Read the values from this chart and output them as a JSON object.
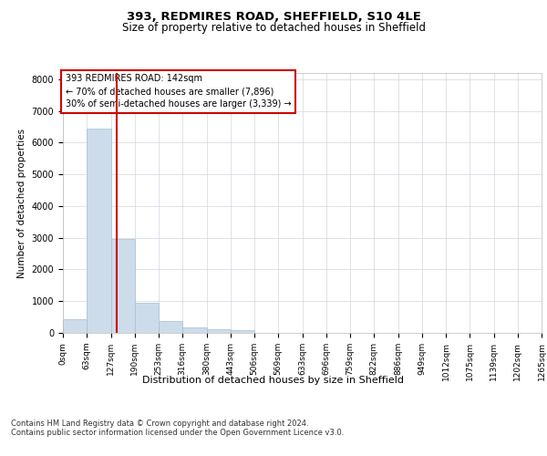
{
  "title_line1": "393, REDMIRES ROAD, SHEFFIELD, S10 4LE",
  "title_line2": "Size of property relative to detached houses in Sheffield",
  "xlabel": "Distribution of detached houses by size in Sheffield",
  "ylabel": "Number of detached properties",
  "footer_line1": "Contains HM Land Registry data © Crown copyright and database right 2024.",
  "footer_line2": "Contains public sector information licensed under the Open Government Licence v3.0.",
  "annotation_title": "393 REDMIRES ROAD: 142sqm",
  "annotation_line1": "← 70% of detached houses are smaller (7,896)",
  "annotation_line2": "30% of semi-detached houses are larger (3,339) →",
  "bar_edges": [
    0,
    63,
    127,
    190,
    253,
    316,
    380,
    443,
    506,
    569,
    633,
    696,
    759,
    822,
    886,
    949,
    1012,
    1075,
    1139,
    1202,
    1265
  ],
  "bar_heights": [
    430,
    6450,
    2950,
    950,
    380,
    170,
    120,
    85,
    0,
    0,
    0,
    0,
    0,
    0,
    0,
    0,
    0,
    0,
    0,
    0
  ],
  "bar_color": "#cddcea",
  "bar_edge_color": "#a8bfce",
  "red_line_x": 142,
  "annotation_box_color": "#ffffff",
  "annotation_box_edge_color": "#cc0000",
  "ylim": [
    0,
    8200
  ],
  "yticks": [
    0,
    1000,
    2000,
    3000,
    4000,
    5000,
    6000,
    7000,
    8000
  ],
  "grid_color": "#d0d8e0",
  "background_color": "#ffffff",
  "title1_fontsize": 9.5,
  "title2_fontsize": 8.5,
  "ylabel_fontsize": 7.5,
  "xlabel_fontsize": 8.0,
  "tick_fontsize": 6.5,
  "footer_fontsize": 6.0,
  "annotation_fontsize": 7.0
}
